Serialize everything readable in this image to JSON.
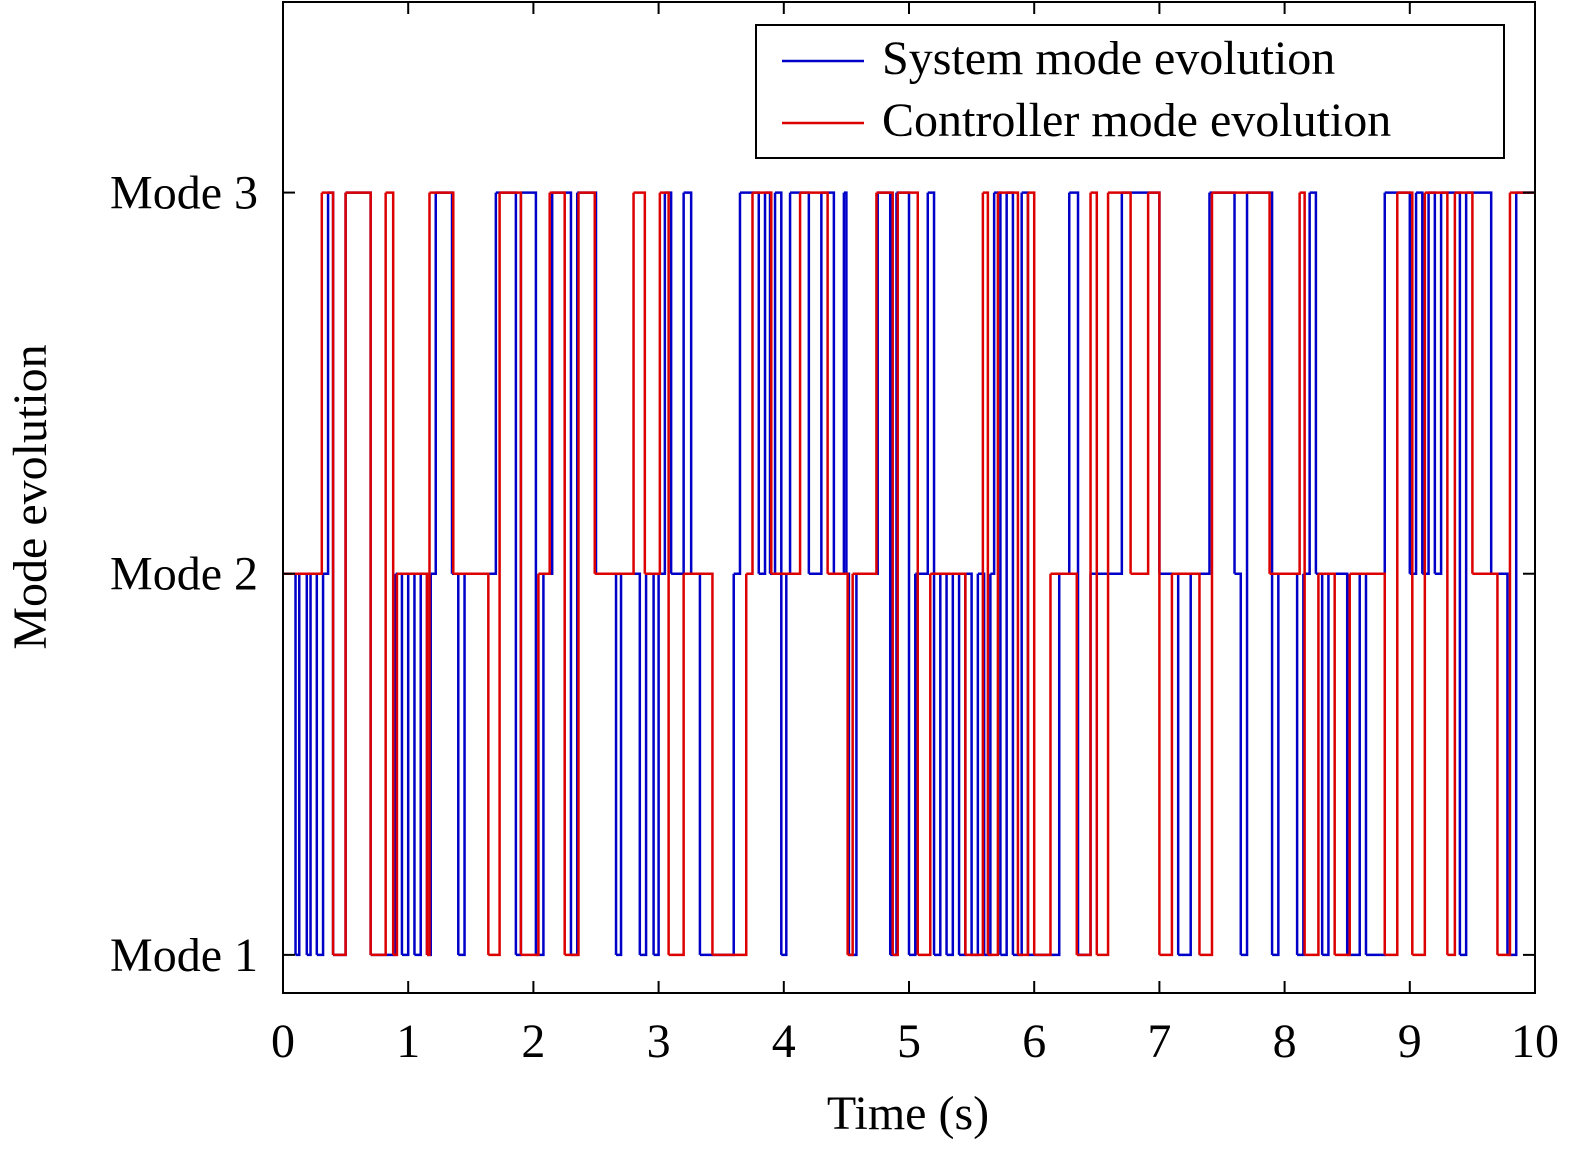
{
  "chart_data": {
    "type": "line",
    "drawstyle": "steps-post",
    "xlabel": "Time (s)",
    "ylabel": "Mode evolution",
    "xlim": [
      0,
      10
    ],
    "xticks": [
      0,
      1,
      2,
      3,
      4,
      5,
      6,
      7,
      8,
      9,
      10
    ],
    "ylim": [
      0.9,
      3.5
    ],
    "yticks": [
      {
        "value": 1,
        "label": "Mode 1"
      },
      {
        "value": 2,
        "label": "Mode 2"
      },
      {
        "value": 3,
        "label": "Mode 3"
      }
    ],
    "legend": "upper right",
    "series": [
      {
        "name": "System mode evolution",
        "color": "#0000c8",
        "x": [
          0,
          0.1,
          0.13,
          0.19,
          0.22,
          0.27,
          0.32,
          0.36,
          0.4,
          0.5,
          0.7,
          0.9,
          0.95,
          1.0,
          1.05,
          1.1,
          1.15,
          1.18,
          1.22,
          1.35,
          1.4,
          1.45,
          1.7,
          1.86,
          1.9,
          2.02,
          2.08,
          2.15,
          2.3,
          2.35,
          2.5,
          2.66,
          2.7,
          2.85,
          2.9,
          2.96,
          3.0,
          3.05,
          3.1,
          3.2,
          3.26,
          3.33,
          3.6,
          3.65,
          3.8,
          3.85,
          3.89,
          3.93,
          3.98,
          4.02,
          4.05,
          4.2,
          4.3,
          4.4,
          4.48,
          4.5,
          4.52,
          4.58,
          4.75,
          4.85,
          4.9,
          5.0,
          5.05,
          5.15,
          5.2,
          5.25,
          5.3,
          5.35,
          5.4,
          5.45,
          5.5,
          5.55,
          5.6,
          5.65,
          5.68,
          5.73,
          5.78,
          5.83,
          5.9,
          5.95,
          6.2,
          6.28,
          6.35,
          6.45,
          6.7,
          7.0,
          7.15,
          7.25,
          7.4,
          7.6,
          7.65,
          7.7,
          7.9,
          7.95,
          8.1,
          8.15,
          8.2,
          8.25,
          8.3,
          8.35,
          8.5,
          8.6,
          8.65,
          8.8,
          9.0,
          9.05,
          9.1,
          9.15,
          9.2,
          9.25,
          9.4,
          9.45,
          9.65,
          9.78,
          9.85,
          10
        ],
        "values": [
          2,
          1,
          2,
          1,
          2,
          1,
          2,
          3,
          1,
          3,
          1,
          2,
          1,
          2,
          1,
          2,
          1,
          2,
          3,
          2,
          1,
          2,
          3,
          1,
          3,
          1,
          2,
          3,
          1,
          3,
          2,
          1,
          2,
          1,
          2,
          1,
          2,
          3,
          2,
          3,
          2,
          1,
          2,
          3,
          2,
          3,
          2,
          3,
          1,
          2,
          3,
          2,
          3,
          2,
          3,
          2,
          1,
          2,
          3,
          1,
          3,
          1,
          2,
          3,
          1,
          2,
          1,
          2,
          1,
          2,
          1,
          2,
          1,
          2,
          3,
          1,
          3,
          1,
          3,
          1,
          2,
          3,
          1,
          2,
          3,
          2,
          1,
          2,
          3,
          2,
          1,
          3,
          1,
          2,
          1,
          2,
          3,
          2,
          1,
          2,
          1,
          2,
          1,
          3,
          2,
          3,
          2,
          3,
          2,
          3,
          1,
          3,
          2,
          1,
          3,
          3
        ]
      },
      {
        "name": "Controller mode evolution",
        "color": "#dc0000",
        "x": [
          0,
          0.31,
          0.4,
          0.5,
          0.7,
          0.82,
          0.88,
          0.91,
          1.15,
          1.17,
          1.36,
          1.64,
          1.73,
          1.9,
          2.04,
          2.13,
          2.25,
          2.36,
          2.49,
          2.8,
          2.89,
          3.01,
          3.08,
          3.2,
          3.43,
          3.7,
          3.75,
          3.9,
          4.13,
          4.35,
          4.51,
          4.55,
          4.74,
          4.87,
          4.91,
          5.07,
          5.17,
          5.45,
          5.59,
          5.63,
          5.71,
          5.87,
          5.95,
          6.0,
          6.13,
          6.34,
          6.38,
          6.45,
          6.5,
          6.59,
          6.77,
          6.91,
          7.0,
          7.1,
          7.32,
          7.42,
          7.88,
          8.12,
          8.16,
          8.27,
          8.4,
          8.52,
          8.8,
          8.9,
          9.02,
          9.12,
          9.3,
          9.36,
          9.5,
          9.7,
          9.8,
          10
        ],
        "values": [
          2,
          3,
          1,
          3,
          1,
          3,
          1,
          2,
          1,
          3,
          2,
          1,
          3,
          1,
          2,
          3,
          1,
          3,
          2,
          3,
          2,
          3,
          1,
          2,
          1,
          2,
          3,
          2,
          3,
          2,
          1,
          2,
          3,
          1,
          3,
          1,
          2,
          1,
          3,
          1,
          3,
          1,
          3,
          1,
          2,
          1,
          1,
          3,
          1,
          3,
          2,
          3,
          1,
          2,
          1,
          3,
          2,
          3,
          1,
          2,
          1,
          2,
          1,
          3,
          1,
          3,
          1,
          3,
          2,
          1,
          3,
          3
        ]
      }
    ]
  }
}
